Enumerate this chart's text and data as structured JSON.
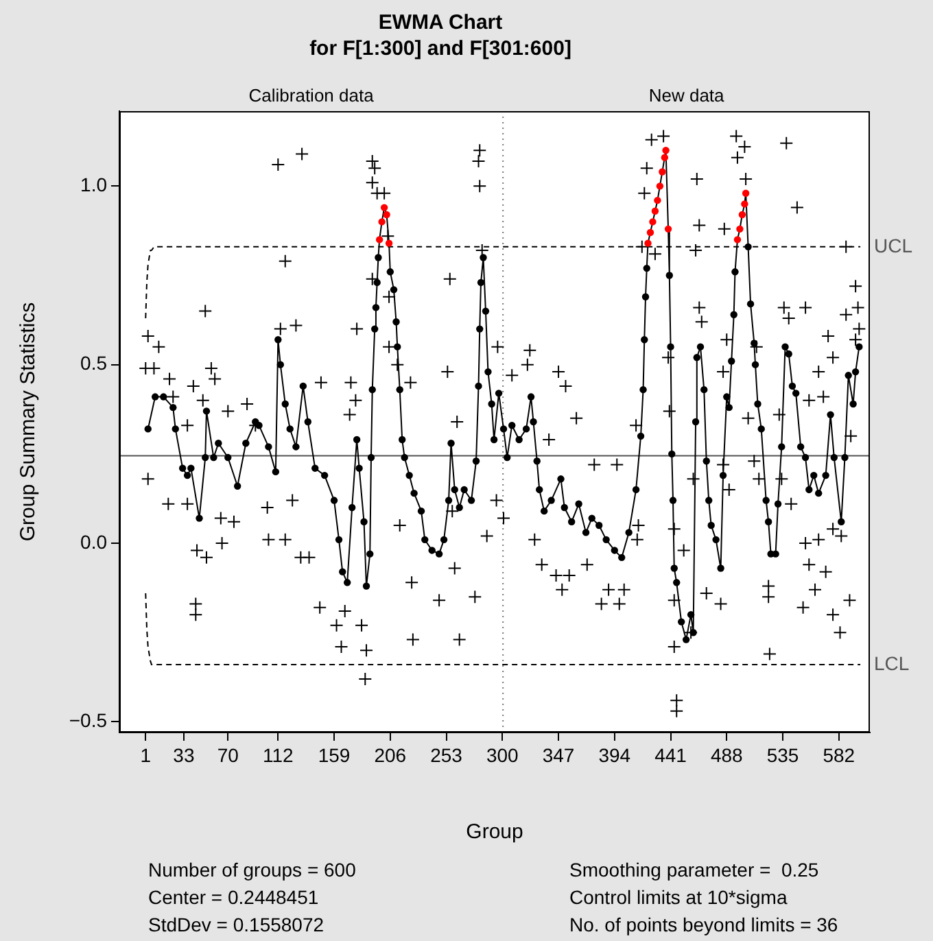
{
  "chart_data": {
    "type": "line",
    "title": "EWMA Chart",
    "subtitle": "for F[1:300] and F[301:600]",
    "xlabel": "Group",
    "ylabel": "Group Summary Statistics",
    "xlim": [
      -21,
      608
    ],
    "xticks": [
      1,
      33,
      70,
      112,
      159,
      206,
      253,
      300,
      347,
      394,
      441,
      488,
      535,
      582
    ],
    "ylim": [
      -0.53,
      1.21
    ],
    "yticks": [
      {
        "value": -0.5,
        "label": "−0.5"
      },
      {
        "value": 0,
        "label": "0.0"
      },
      {
        "value": 0.5,
        "label": "0.5"
      },
      {
        "value": 1,
        "label": "1.0"
      }
    ],
    "grid": false,
    "legend": false,
    "series": [
      {
        "type": "scatter",
        "marker": "cross",
        "color": "#000000",
        "x": [
          112,
          132,
          3,
          12,
          1,
          8,
          21,
          41,
          51,
          56,
          59,
          24,
          49,
          70,
          86,
          114,
          127,
          118,
          3,
          20,
          36,
          44,
          52,
          65,
          75,
          64,
          104,
          118,
          131,
          43,
          43,
          103,
          124,
          93,
          36,
          191,
          193,
          191,
          201,
          195,
          204,
          191,
          205,
          205,
          212,
          178,
          148,
          173,
          177,
          172,
          223,
          254,
          256,
          262,
          280,
          281,
          281,
          283,
          138,
          147,
          161,
          165,
          168,
          182,
          186,
          185,
          225,
          264,
          277,
          287,
          224,
          247,
          260,
          214,
          258,
          296,
          323,
          321,
          347,
          353,
          362,
          308,
          339,
          377,
          396,
          412,
          439,
          440,
          295,
          301,
          327,
          333,
          345,
          350,
          356,
          371,
          383,
          389,
          398,
          402,
          414,
          413,
          421,
          425,
          435,
          419,
          417,
          428,
          444,
          444,
          446,
          446,
          444,
          496,
          503,
          497,
          538,
          463,
          504,
          547,
          465,
          486,
          462,
          588,
          596,
          465,
          467,
          536,
          554,
          540,
          588,
          598,
          599,
          573,
          596,
          488,
          513,
          485,
          565,
          577,
          569,
          557,
          532,
          506,
          592,
          511,
          485,
          460,
          490,
          515,
          534,
          542,
          577,
          584,
          565,
          554,
          452,
          557,
          571,
          552,
          562,
          577,
          591,
          583,
          483,
          471,
          523,
          523,
          524,
          458
        ],
        "values": [
          1.06,
          1.09,
          0.58,
          0.55,
          0.49,
          0.49,
          0.46,
          0.44,
          0.65,
          0.49,
          0.46,
          0.41,
          0.4,
          0.37,
          0.39,
          0.6,
          0.61,
          0.79,
          0.18,
          0.11,
          0.11,
          -0.02,
          -0.04,
          0.0,
          0.06,
          0.07,
          0.01,
          0.01,
          -0.04,
          -0.17,
          -0.2,
          0.1,
          0.12,
          0.33,
          0.33,
          1.07,
          1.05,
          1.01,
          0.98,
          0.98,
          0.86,
          0.74,
          0.69,
          0.55,
          0.5,
          0.6,
          0.45,
          0.45,
          0.4,
          0.36,
          0.45,
          0.48,
          0.74,
          0.34,
          1.07,
          1.1,
          1.0,
          0.82,
          -0.04,
          -0.18,
          -0.23,
          -0.29,
          -0.19,
          -0.23,
          -0.3,
          -0.38,
          -0.27,
          -0.27,
          -0.15,
          0.02,
          -0.11,
          -0.16,
          -0.07,
          0.05,
          0.09,
          0.55,
          0.54,
          0.5,
          0.48,
          0.44,
          0.35,
          0.47,
          0.29,
          0.22,
          0.22,
          0.33,
          0.52,
          0.37,
          0.12,
          0.07,
          0.01,
          -0.06,
          -0.09,
          -0.13,
          -0.09,
          -0.06,
          -0.17,
          -0.13,
          -0.17,
          -0.13,
          0.05,
          0.01,
          1.05,
          1.13,
          1.14,
          0.98,
          0.83,
          0.81,
          -0.16,
          -0.29,
          -0.44,
          -0.47,
          0.04,
          1.14,
          1.11,
          1.08,
          1.12,
          1.02,
          1.02,
          0.94,
          0.89,
          0.88,
          0.82,
          0.83,
          0.72,
          0.66,
          0.62,
          0.66,
          0.66,
          0.63,
          0.64,
          0.66,
          0.6,
          0.58,
          0.57,
          0.57,
          0.55,
          0.48,
          0.48,
          0.52,
          0.41,
          0.4,
          0.36,
          0.35,
          0.3,
          0.23,
          0.22,
          0.18,
          0.15,
          0.18,
          0.18,
          0.11,
          0.04,
          0.02,
          0.01,
          0.0,
          -0.02,
          -0.06,
          -0.08,
          -0.18,
          -0.13,
          -0.2,
          -0.16,
          -0.25,
          -0.17,
          -0.14,
          -0.12,
          -0.15,
          -0.31,
          -0.25
        ]
      },
      {
        "marker": "circle",
        "color": "#000000",
        "x": [
          3,
          9,
          16,
          24,
          26,
          32,
          36,
          39,
          46,
          51,
          52,
          58,
          62,
          70,
          78,
          85,
          93,
          96,
          104,
          110,
          112,
          114,
          118,
          122,
          127,
          133,
          137,
          143,
          151,
          159,
          163,
          166,
          170,
          174,
          178,
          180,
          184,
          186,
          189,
          190,
          191,
          193,
          194,
          195,
          196,
          197,
          199,
          201,
          203,
          205,
          206,
          209,
          211,
          212,
          214,
          216,
          218,
          222,
          226,
          232,
          235,
          241,
          247,
          251,
          255,
          257,
          260,
          264,
          268,
          274,
          278,
          280,
          281,
          282,
          284,
          286,
          288,
          291,
          293,
          297,
          301,
          304,
          308,
          314,
          320,
          324,
          326,
          329,
          331,
          335,
          341,
          349,
          352,
          358,
          364,
          370,
          375,
          381,
          387,
          394,
          400,
          406,
          412,
          416,
          418,
          419,
          420,
          421,
          422,
          424,
          426,
          428,
          430,
          432,
          434,
          436,
          437,
          439,
          440,
          441,
          442,
          443,
          444,
          446,
          450,
          454,
          458,
          460,
          462,
          463,
          466,
          469,
          471,
          473,
          475,
          479,
          483,
          485,
          488,
          490,
          492,
          494,
          495,
          497,
          499,
          501,
          503,
          504,
          506,
          508,
          511,
          512,
          514,
          517,
          521,
          523,
          525,
          529,
          531,
          534,
          537,
          540,
          543,
          546,
          550,
          554,
          557,
          561,
          565,
          571,
          575,
          578,
          584,
          587,
          590,
          594,
          596,
          599
        ],
        "values": [
          0.32,
          0.41,
          0.41,
          0.38,
          0.32,
          0.21,
          0.19,
          0.21,
          0.07,
          0.24,
          0.37,
          0.24,
          0.28,
          0.24,
          0.16,
          0.28,
          0.34,
          0.33,
          0.27,
          0.2,
          0.57,
          0.5,
          0.39,
          0.32,
          0.27,
          0.44,
          0.34,
          0.21,
          0.19,
          0.12,
          0.01,
          -0.08,
          -0.11,
          0.1,
          0.29,
          0.21,
          0.06,
          -0.12,
          -0.03,
          0.24,
          0.43,
          0.6,
          0.66,
          0.73,
          0.8,
          0.85,
          0.9,
          0.94,
          0.92,
          0.84,
          0.76,
          0.71,
          0.62,
          0.55,
          0.43,
          0.29,
          0.24,
          0.19,
          0.14,
          0.09,
          0.01,
          -0.02,
          -0.03,
          0.01,
          0.12,
          0.28,
          0.15,
          0.1,
          0.15,
          0.12,
          0.23,
          0.44,
          0.6,
          0.73,
          0.8,
          0.65,
          0.48,
          0.39,
          0.29,
          0.42,
          0.32,
          0.24,
          0.33,
          0.29,
          0.32,
          0.41,
          0.34,
          0.23,
          0.15,
          0.09,
          0.12,
          0.18,
          0.1,
          0.06,
          0.11,
          0.03,
          0.07,
          0.05,
          0.01,
          -0.02,
          -0.04,
          0.03,
          0.15,
          0.3,
          0.43,
          0.57,
          0.69,
          0.77,
          0.84,
          0.87,
          0.9,
          0.93,
          0.96,
          1.0,
          1.04,
          1.08,
          1.1,
          0.88,
          0.75,
          0.55,
          0.25,
          0.12,
          -0.07,
          -0.11,
          -0.22,
          -0.27,
          -0.2,
          -0.25,
          0.34,
          0.52,
          0.55,
          0.43,
          0.23,
          0.12,
          0.05,
          0.01,
          -0.07,
          0.19,
          0.41,
          0.38,
          0.51,
          0.64,
          0.76,
          0.85,
          0.88,
          0.92,
          0.95,
          0.98,
          0.83,
          0.67,
          0.56,
          0.5,
          0.39,
          0.32,
          0.12,
          0.06,
          -0.03,
          -0.03,
          0.11,
          0.27,
          0.55,
          0.53,
          0.44,
          0.42,
          0.27,
          0.24,
          0.15,
          0.19,
          0.14,
          0.19,
          0.36,
          0.24,
          0.06,
          0.24,
          0.47,
          0.39,
          0.48,
          0.55
        ],
        "colors": [
          "#000000",
          "#000000",
          "#000000",
          "#000000",
          "#000000",
          "#000000",
          "#000000",
          "#000000",
          "#000000",
          "#000000",
          "#000000",
          "#000000",
          "#000000",
          "#000000",
          "#000000",
          "#000000",
          "#000000",
          "#000000",
          "#000000",
          "#000000",
          "#000000",
          "#000000",
          "#000000",
          "#000000",
          "#000000",
          "#000000",
          "#000000",
          "#000000",
          "#000000",
          "#000000",
          "#000000",
          "#000000",
          "#000000",
          "#000000",
          "#000000",
          "#000000",
          "#000000",
          "#000000",
          "#000000",
          "#000000",
          "#000000",
          "#000000",
          "#000000",
          "#000000",
          "#000000",
          "#ff0000",
          "#ff0000",
          "#ff0000",
          "#ff0000",
          "#ff0000",
          "#000000",
          "#000000",
          "#000000",
          "#000000",
          "#000000",
          "#000000",
          "#000000",
          "#000000",
          "#000000",
          "#000000",
          "#000000",
          "#000000",
          "#000000",
          "#000000",
          "#000000",
          "#000000",
          "#000000",
          "#000000",
          "#000000",
          "#000000",
          "#000000",
          "#000000",
          "#000000",
          "#000000",
          "#000000",
          "#000000",
          "#000000",
          "#000000",
          "#000000",
          "#000000",
          "#000000",
          "#000000",
          "#000000",
          "#000000",
          "#000000",
          "#000000",
          "#000000",
          "#000000",
          "#000000",
          "#000000",
          "#000000",
          "#000000",
          "#000000",
          "#000000",
          "#000000",
          "#000000",
          "#000000",
          "#000000",
          "#000000",
          "#000000",
          "#000000",
          "#000000",
          "#000000",
          "#000000",
          "#000000",
          "#000000",
          "#000000",
          "#000000",
          "#ff0000",
          "#ff0000",
          "#ff0000",
          "#ff0000",
          "#ff0000",
          "#ff0000",
          "#ff0000",
          "#ff0000",
          "#ff0000",
          "#ff0000",
          "#000000",
          "#000000",
          "#000000",
          "#000000",
          "#000000",
          "#000000",
          "#000000",
          "#000000",
          "#000000",
          "#000000",
          "#000000",
          "#000000",
          "#000000",
          "#000000",
          "#000000",
          "#000000",
          "#000000",
          "#000000",
          "#000000",
          "#000000",
          "#000000",
          "#000000",
          "#000000",
          "#000000",
          "#000000",
          "#ff0000",
          "#ff0000",
          "#ff0000",
          "#ff0000",
          "#ff0000",
          "#000000",
          "#000000",
          "#000000",
          "#000000",
          "#000000",
          "#000000",
          "#000000",
          "#000000",
          "#000000",
          "#000000",
          "#000000",
          "#000000",
          "#000000",
          "#000000",
          "#000000",
          "#000000",
          "#000000",
          "#000000",
          "#000000",
          "#000000",
          "#000000",
          "#000000",
          "#000000",
          "#000000",
          "#000000",
          "#000000",
          "#000000",
          "#000000",
          "#000000",
          "#000000"
        ]
      },
      {
        "name": "UCL",
        "marker": "none",
        "line_style": "dashed",
        "color": "#000000",
        "x": [
          1,
          2,
          3,
          4,
          5,
          6,
          8,
          600
        ],
        "values": [
          0.63,
          0.73,
          0.78,
          0.8,
          0.82,
          0.82,
          0.83,
          0.83
        ]
      },
      {
        "name": "LCL",
        "marker": "none",
        "line_style": "dashed",
        "color": "#000000",
        "x": [
          1,
          2,
          3,
          4,
          5,
          6,
          8,
          600
        ],
        "values": [
          -0.14,
          -0.24,
          -0.29,
          -0.31,
          -0.33,
          -0.34,
          -0.34,
          -0.34
        ]
      }
    ],
    "ref_lines": [
      {
        "axis": "y",
        "value": 0.2448451,
        "color": "#555555",
        "line_style": "solid"
      },
      {
        "axis": "x",
        "value": 300.5,
        "color": "#777777",
        "line_style": "dotted"
      }
    ],
    "annotations": [
      "Calibration data",
      "New data",
      "Number of groups = 600",
      "Center = 0.2448451",
      "StdDev = 0.1558072",
      "Smoothing parameter =  0.25",
      "Control limits at 10*sigma",
      "No. of points beyond limits = 36"
    ]
  }
}
